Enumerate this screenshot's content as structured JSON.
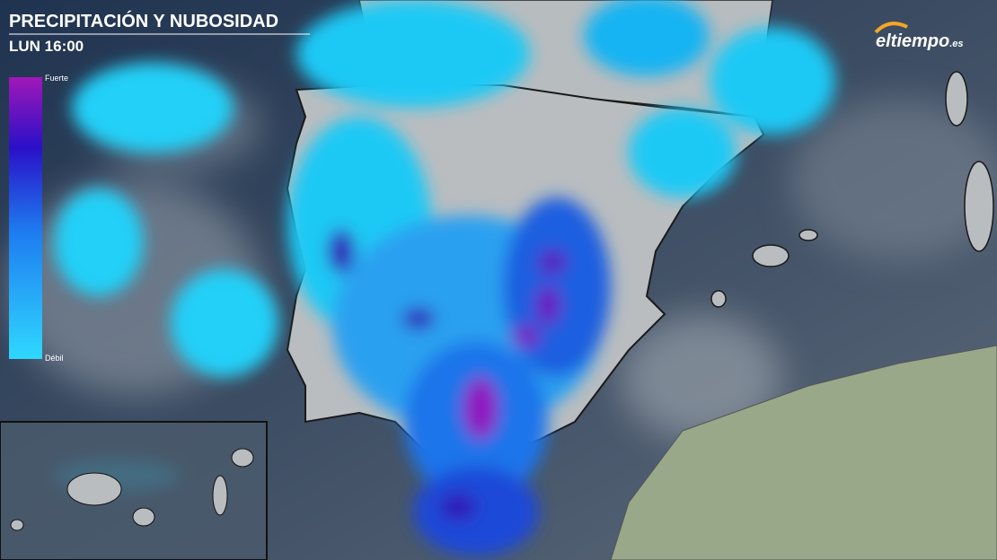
{
  "header": {
    "title": "PRECIPITACIÓN Y NUBOSIDAD",
    "time": "LUN 16:00"
  },
  "legend": {
    "high": "Fuerte",
    "low": "Débil"
  },
  "logo": {
    "name": "eltiempo",
    "suffix": ".es"
  }
}
